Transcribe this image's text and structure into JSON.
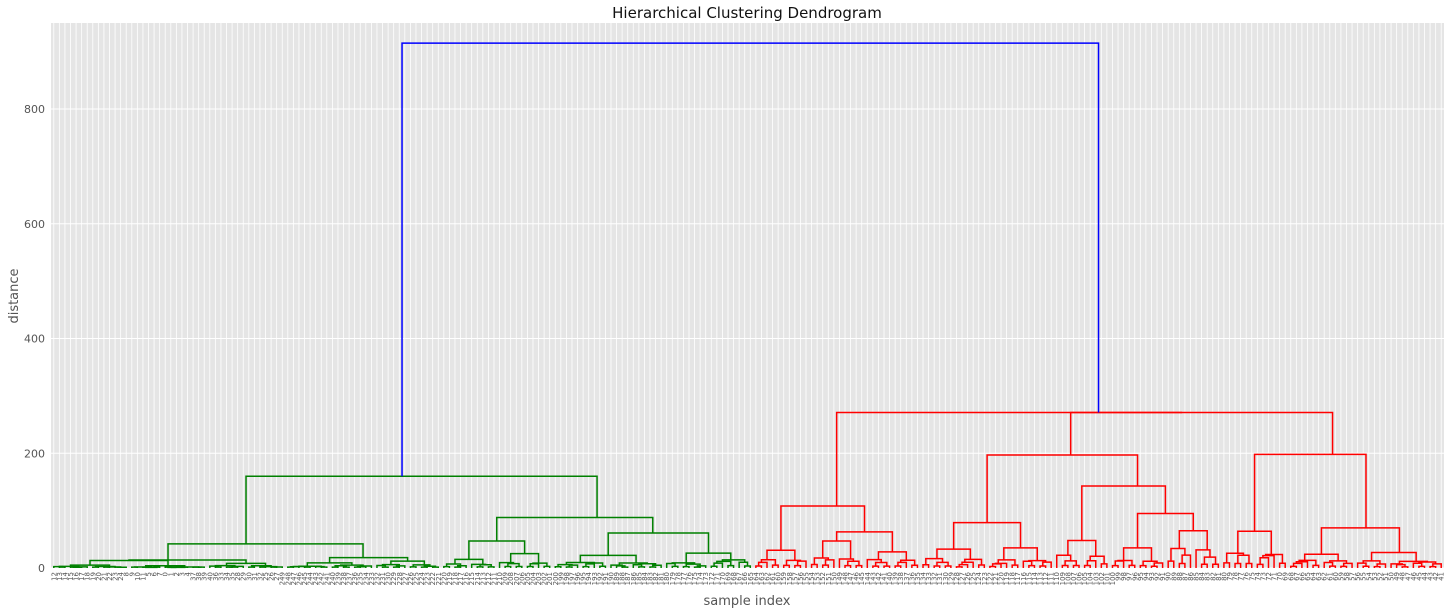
{
  "chart_data": {
    "type": "dendrogram",
    "title": "Hierarchical Clustering Dendrogram",
    "xlabel": "sample index",
    "ylabel": "distance",
    "ylim": [
      0,
      950
    ],
    "yticks": [
      0,
      200,
      400,
      600,
      800
    ],
    "grid": true,
    "leaf_count": 250,
    "colors": {
      "root_link": "#0000ff",
      "cluster_a": "#008000",
      "cluster_b": "#ff0000",
      "background": "#e5e5e5",
      "grid": "#ffffff"
    },
    "leaf_labels": [
      "12",
      "13",
      "14",
      "15",
      "16",
      "17",
      "18",
      "19",
      "20",
      "21",
      "22",
      "23",
      "24",
      "8",
      "9",
      "10",
      "11",
      "5",
      "6",
      "7",
      "0",
      "1",
      "2",
      "3",
      "4",
      "37",
      "38",
      "39",
      "40",
      "36",
      "33",
      "34",
      "35",
      "28",
      "29",
      "30",
      "31",
      "32",
      "25",
      "26",
      "27",
      "249",
      "248",
      "247",
      "246",
      "245",
      "244",
      "243",
      "242",
      "241",
      "240",
      "239",
      "238",
      "237",
      "236",
      "235",
      "234",
      "233",
      "232",
      "231",
      "230",
      "229",
      "228",
      "227",
      "226",
      "225",
      "224",
      "223",
      "222",
      "221",
      "220",
      "219",
      "218",
      "217",
      "216",
      "215",
      "214",
      "213",
      "212",
      "211",
      "210",
      "209",
      "208",
      "207",
      "206",
      "205",
      "204",
      "203",
      "202",
      "201",
      "200",
      "199",
      "198",
      "197",
      "196",
      "195",
      "194",
      "193",
      "192",
      "191",
      "190",
      "189",
      "188",
      "187",
      "186",
      "185",
      "184",
      "183",
      "182",
      "181",
      "180",
      "179",
      "178",
      "177",
      "176",
      "175",
      "174",
      "173",
      "172",
      "171",
      "170",
      "169",
      "168",
      "167",
      "166",
      "165",
      "164",
      "163",
      "162",
      "161",
      "160",
      "159",
      "158",
      "157",
      "156",
      "155",
      "154",
      "153",
      "152",
      "151",
      "150",
      "149",
      "148",
      "147",
      "146",
      "145",
      "144",
      "143",
      "142",
      "141",
      "140",
      "139",
      "138",
      "137",
      "136",
      "135",
      "134",
      "133",
      "132",
      "131",
      "130",
      "129",
      "128",
      "127",
      "126",
      "125",
      "124",
      "123",
      "122",
      "121",
      "120",
      "119",
      "118",
      "117",
      "116",
      "115",
      "114",
      "113",
      "112",
      "111",
      "110",
      "109",
      "108",
      "107",
      "106",
      "105",
      "104",
      "103",
      "102",
      "101",
      "100",
      "99",
      "98",
      "97",
      "96",
      "95",
      "94",
      "93",
      "92",
      "91",
      "90",
      "89",
      "88",
      "87",
      "86",
      "85",
      "84",
      "83",
      "82",
      "81",
      "80",
      "79",
      "78",
      "77",
      "76",
      "75",
      "74",
      "73",
      "72",
      "71",
      "70",
      "69",
      "68",
      "67",
      "66",
      "65",
      "64",
      "63",
      "62",
      "61",
      "60",
      "59",
      "58",
      "57",
      "56",
      "55",
      "54",
      "53",
      "52",
      "51",
      "50",
      "49",
      "48",
      "47",
      "46",
      "45",
      "44",
      "43",
      "42",
      "41"
    ],
    "merges": [
      {
        "left": [
          0,
          7
        ],
        "right": [
          7,
          14
        ],
        "height": 5,
        "color": "cluster_a"
      },
      {
        "left": [
          14,
          20
        ],
        "right": [
          20,
          28
        ],
        "height": 4,
        "color": "cluster_a"
      },
      {
        "left": [
          0,
          14
        ],
        "right": [
          14,
          28
        ],
        "height": 13,
        "color": "cluster_a"
      },
      {
        "left": [
          28,
          35
        ],
        "right": [
          35,
          42
        ],
        "height": 8,
        "color": "cluster_a"
      },
      {
        "left": [
          0,
          28
        ],
        "right": [
          28,
          42
        ],
        "height": 14,
        "color": "cluster_a"
      },
      {
        "left": [
          42,
          50
        ],
        "right": [
          50,
          58
        ],
        "height": 9,
        "color": "cluster_a"
      },
      {
        "left": [
          58,
          64
        ],
        "right": [
          64,
          70
        ],
        "height": 12,
        "color": "cluster_a"
      },
      {
        "left": [
          42,
          58
        ],
        "right": [
          58,
          70
        ],
        "height": 18,
        "color": "cluster_a"
      },
      {
        "left": [
          0,
          42
        ],
        "right": [
          42,
          70
        ],
        "height": 42,
        "color": "cluster_a"
      },
      {
        "left": [
          70,
          75
        ],
        "right": [
          75,
          80
        ],
        "height": 15,
        "color": "cluster_a"
      },
      {
        "left": [
          80,
          85
        ],
        "right": [
          85,
          90
        ],
        "height": 25,
        "color": "cluster_a"
      },
      {
        "left": [
          70,
          80
        ],
        "right": [
          80,
          90
        ],
        "height": 47,
        "color": "cluster_a"
      },
      {
        "left": [
          90,
          100
        ],
        "right": [
          100,
          110
        ],
        "height": 22,
        "color": "cluster_a"
      },
      {
        "left": [
          110,
          118
        ],
        "right": [
          118,
          126
        ],
        "height": 26,
        "color": "cluster_a"
      },
      {
        "left": [
          90,
          110
        ],
        "right": [
          110,
          126
        ],
        "height": 61,
        "color": "cluster_a"
      },
      {
        "left": [
          70,
          90
        ],
        "right": [
          90,
          126
        ],
        "height": 88,
        "color": "cluster_a"
      },
      {
        "left": [
          0,
          70
        ],
        "right": [
          70,
          126
        ],
        "height": 160,
        "color": "cluster_a"
      },
      {
        "left": [
          126,
          131
        ],
        "right": [
          131,
          136
        ],
        "height": 31,
        "color": "cluster_b"
      },
      {
        "left": [
          136,
          141
        ],
        "right": [
          141,
          146
        ],
        "height": 47,
        "color": "cluster_b"
      },
      {
        "left": [
          146,
          151
        ],
        "right": [
          151,
          156
        ],
        "height": 28,
        "color": "cluster_b"
      },
      {
        "left": [
          136,
          146
        ],
        "right": [
          146,
          156
        ],
        "height": 63,
        "color": "cluster_b"
      },
      {
        "left": [
          126,
          136
        ],
        "right": [
          136,
          156
        ],
        "height": 108,
        "color": "cluster_b"
      },
      {
        "left": [
          156,
          162
        ],
        "right": [
          162,
          168
        ],
        "height": 33,
        "color": "cluster_b"
      },
      {
        "left": [
          168,
          174
        ],
        "right": [
          174,
          180
        ],
        "height": 35,
        "color": "cluster_b"
      },
      {
        "left": [
          156,
          168
        ],
        "right": [
          168,
          180
        ],
        "height": 79,
        "color": "cluster_b"
      },
      {
        "left": [
          180,
          185
        ],
        "right": [
          185,
          190
        ],
        "height": 48,
        "color": "cluster_b"
      },
      {
        "left": [
          190,
          195
        ],
        "right": [
          195,
          200
        ],
        "height": 35,
        "color": "cluster_b"
      },
      {
        "left": [
          200,
          205
        ],
        "right": [
          205,
          210
        ],
        "height": 65,
        "color": "cluster_b"
      },
      {
        "left": [
          190,
          200
        ],
        "right": [
          200,
          210
        ],
        "height": 95,
        "color": "cluster_b"
      },
      {
        "left": [
          180,
          190
        ],
        "right": [
          190,
          210
        ],
        "height": 143,
        "color": "cluster_b"
      },
      {
        "left": [
          156,
          180
        ],
        "right": [
          180,
          210
        ],
        "height": 197,
        "color": "cluster_b"
      },
      {
        "left": [
          210,
          216
        ],
        "right": [
          216,
          222
        ],
        "height": 64,
        "color": "cluster_b"
      },
      {
        "left": [
          222,
          228
        ],
        "right": [
          228,
          234
        ],
        "height": 24,
        "color": "cluster_b"
      },
      {
        "left": [
          234,
          240
        ],
        "right": [
          240,
          250
        ],
        "height": 27,
        "color": "cluster_b"
      },
      {
        "left": [
          222,
          234
        ],
        "right": [
          234,
          250
        ],
        "height": 70,
        "color": "cluster_b"
      },
      {
        "left": [
          210,
          222
        ],
        "right": [
          222,
          250
        ],
        "height": 198,
        "color": "cluster_b"
      },
      {
        "left": [
          156,
          210
        ],
        "right": [
          210,
          250
        ],
        "height": 271,
        "color": "cluster_b"
      },
      {
        "left": [
          126,
          156
        ],
        "right": [
          156,
          250
        ],
        "height": 271,
        "color": "cluster_b"
      },
      {
        "left": [
          0,
          126
        ],
        "right": [
          126,
          250
        ],
        "height": 915,
        "color": "root_link"
      }
    ]
  }
}
